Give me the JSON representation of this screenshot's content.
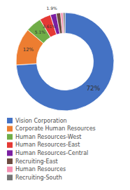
{
  "chart_data": {
    "type": "donut",
    "categories": [
      "Vision Corporation",
      "Corporate Human Resources",
      "Human Resources-West",
      "Human Resources-East",
      "Human Resources-Central",
      "Recruiting-East",
      "Human Resources",
      "Recruiting-South"
    ],
    "values": [
      72,
      12,
      5.1,
      3.61,
      1.9,
      1.4,
      0.8,
      0.6
    ],
    "colors": [
      "#4472c4",
      "#ed7d31",
      "#70ad47",
      "#e53935",
      "#7b1fa2",
      "#6d4c41",
      "#f48fb1",
      "#757575"
    ],
    "value_labels": [
      "72%",
      "12%",
      "5.1%",
      "3.61%",
      "1.9%",
      null,
      null,
      null
    ],
    "data_labels": true,
    "legend": "bottom"
  }
}
